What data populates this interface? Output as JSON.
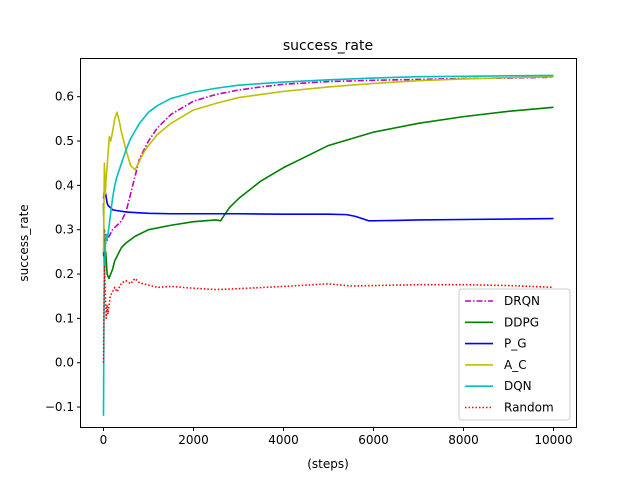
{
  "chart_data": {
    "type": "line",
    "title": "success_rate",
    "xlabel": "(steps)",
    "ylabel": "success_rate",
    "xlim": [
      -500,
      10500
    ],
    "ylim": [
      -0.145,
      0.685
    ],
    "xticks": [
      0,
      2000,
      4000,
      6000,
      8000,
      10000
    ],
    "xtick_labels": [
      "0",
      "2000",
      "4000",
      "6000",
      "8000",
      "10000"
    ],
    "yticks": [
      -0.1,
      0.0,
      0.1,
      0.2,
      0.3,
      0.4,
      0.5,
      0.6
    ],
    "ytick_labels": [
      "−0.1",
      "0.0",
      "0.1",
      "0.2",
      "0.3",
      "0.4",
      "0.5",
      "0.6"
    ],
    "grid": false,
    "legend_position": "lower-right",
    "series": [
      {
        "name": "DRQN",
        "color": "#bf00bf",
        "dash": "dashdot",
        "x": [
          0,
          20,
          50,
          100,
          150,
          200,
          300,
          400,
          500,
          600,
          700,
          800,
          1000,
          1200,
          1500,
          2000,
          2500,
          3000,
          3500,
          4000,
          5000,
          6000,
          7000,
          8000,
          9000,
          10000
        ],
        "y": [
          0.24,
          0.3,
          0.27,
          0.28,
          0.29,
          0.3,
          0.31,
          0.32,
          0.34,
          0.38,
          0.42,
          0.46,
          0.5,
          0.53,
          0.56,
          0.59,
          0.605,
          0.615,
          0.622,
          0.628,
          0.634,
          0.637,
          0.639,
          0.641,
          0.642,
          0.644
        ]
      },
      {
        "name": "DDPG",
        "color": "#008000",
        "dash": "solid",
        "x": [
          0,
          20,
          50,
          80,
          120,
          160,
          200,
          250,
          300,
          400,
          500,
          700,
          1000,
          1500,
          2000,
          2500,
          2600,
          2800,
          3000,
          3500,
          4000,
          4500,
          5000,
          6000,
          7000,
          8000,
          9000,
          10000
        ],
        "y": [
          0.36,
          0.21,
          0.25,
          0.2,
          0.19,
          0.2,
          0.21,
          0.23,
          0.24,
          0.26,
          0.27,
          0.285,
          0.3,
          0.31,
          0.318,
          0.322,
          0.32,
          0.35,
          0.37,
          0.41,
          0.44,
          0.465,
          0.49,
          0.52,
          0.54,
          0.555,
          0.567,
          0.576
        ]
      },
      {
        "name": "P_G",
        "color": "#0000ff",
        "dash": "solid",
        "x": [
          0,
          20,
          50,
          80,
          100,
          150,
          200,
          300,
          500,
          800,
          1000,
          1500,
          2000,
          3000,
          4000,
          5000,
          5400,
          5600,
          5900,
          6500,
          7000,
          8000,
          9000,
          10000
        ],
        "y": [
          0.37,
          0.39,
          0.38,
          0.36,
          0.355,
          0.35,
          0.345,
          0.343,
          0.34,
          0.338,
          0.337,
          0.336,
          0.336,
          0.336,
          0.335,
          0.335,
          0.334,
          0.33,
          0.32,
          0.321,
          0.322,
          0.323,
          0.324,
          0.325
        ]
      },
      {
        "name": "A_C",
        "color": "#bfbf00",
        "dash": "solid",
        "x": [
          0,
          20,
          40,
          60,
          80,
          100,
          130,
          160,
          200,
          250,
          300,
          350,
          400,
          500,
          600,
          700,
          800,
          900,
          1000,
          1200,
          1500,
          2000,
          2500,
          3000,
          4000,
          5000,
          6000,
          7000,
          8000,
          9000,
          10000
        ],
        "y": [
          0.25,
          0.45,
          0.38,
          0.42,
          0.44,
          0.47,
          0.51,
          0.5,
          0.52,
          0.55,
          0.565,
          0.545,
          0.52,
          0.48,
          0.445,
          0.435,
          0.455,
          0.475,
          0.49,
          0.515,
          0.54,
          0.57,
          0.585,
          0.598,
          0.612,
          0.622,
          0.63,
          0.636,
          0.64,
          0.643,
          0.645
        ]
      },
      {
        "name": "DQN",
        "color": "#00bfbf",
        "dash": "solid",
        "x": [
          0,
          5,
          10,
          20,
          40,
          60,
          80,
          100,
          150,
          200,
          250,
          300,
          400,
          500,
          600,
          800,
          1000,
          1200,
          1500,
          2000,
          2500,
          3000,
          4000,
          5000,
          6000,
          7000,
          8000,
          9000,
          10000
        ],
        "y": [
          -0.12,
          0.0,
          0.1,
          0.2,
          0.26,
          0.29,
          0.28,
          0.29,
          0.33,
          0.37,
          0.4,
          0.42,
          0.45,
          0.48,
          0.505,
          0.54,
          0.565,
          0.58,
          0.596,
          0.61,
          0.619,
          0.626,
          0.633,
          0.638,
          0.642,
          0.645,
          0.646,
          0.647,
          0.648
        ]
      },
      {
        "name": "Random",
        "color": "#ff0000",
        "dash": "dotted",
        "x": [
          0,
          10,
          20,
          40,
          60,
          80,
          100,
          150,
          200,
          250,
          300,
          400,
          500,
          600,
          700,
          800,
          1000,
          1200,
          1500,
          2000,
          2500,
          3000,
          4000,
          5000,
          5500,
          6000,
          7000,
          8000,
          9000,
          10000
        ],
        "y": [
          0.0,
          0.12,
          0.22,
          0.16,
          0.1,
          0.13,
          0.11,
          0.15,
          0.16,
          0.17,
          0.16,
          0.18,
          0.185,
          0.178,
          0.19,
          0.18,
          0.175,
          0.17,
          0.172,
          0.168,
          0.165,
          0.167,
          0.172,
          0.178,
          0.173,
          0.174,
          0.176,
          0.176,
          0.174,
          0.17
        ]
      }
    ]
  }
}
